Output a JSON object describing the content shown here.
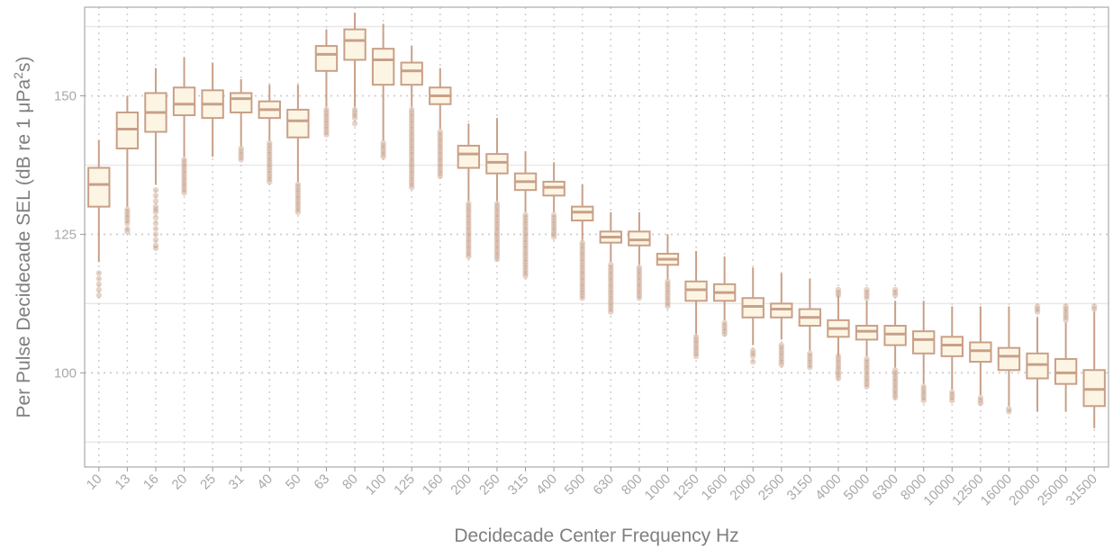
{
  "chart_data": {
    "type": "box",
    "xlabel": "Decidecade Center Frequency  Hz",
    "ylabel": {
      "text": "Per Pulse Decidecade SEL (dB re 1 μPa",
      "sup": "2",
      "suffix": "s)"
    },
    "ylim": [
      83,
      166
    ],
    "yticks": [
      100,
      125,
      150
    ],
    "grid": true,
    "colors": {
      "box_fill": "#fdf5e4",
      "box_stroke": "#c8a088",
      "outlier": "#c8a088",
      "tick_text": "#a8a8a8",
      "title_text": "#7f7f7f",
      "grid_major": "#e8e8e8",
      "grid_dotted": "#cfcfcf",
      "frame": "#9a9a9a"
    },
    "categories": [
      "10",
      "13",
      "16",
      "20",
      "25",
      "31",
      "40",
      "50",
      "63",
      "80",
      "100",
      "125",
      "160",
      "200",
      "250",
      "315",
      "400",
      "500",
      "630",
      "800",
      "1000",
      "1250",
      "1600",
      "2000",
      "2500",
      "3150",
      "4000",
      "5000",
      "6300",
      "8000",
      "10000",
      "12500",
      "16000",
      "20000",
      "25000",
      "31500"
    ],
    "boxes": [
      {
        "whisker_low": 120,
        "q1": 130,
        "median": 134,
        "q3": 137,
        "whisker_high": 142,
        "outliers": [
          118,
          117,
          116,
          115,
          114
        ]
      },
      {
        "whisker_low": 130,
        "q1": 140.5,
        "median": 144,
        "q3": 147,
        "whisker_high": 150,
        "outliers": [
          129.5,
          129,
          128.5,
          128,
          127.5,
          127,
          126,
          125.5
        ]
      },
      {
        "whisker_low": 134,
        "q1": 143.5,
        "median": 147,
        "q3": 150.5,
        "whisker_high": 155,
        "outliers": [
          133,
          132,
          131,
          130,
          129.5,
          129,
          128,
          127,
          126,
          125,
          124,
          123,
          122.5
        ]
      },
      {
        "whisker_low": 139,
        "q1": 146.5,
        "median": 148.5,
        "q3": 151.5,
        "whisker_high": 157,
        "outliers": [
          138.5,
          138,
          137.5,
          137,
          136.5,
          136,
          135.5,
          135,
          134.5,
          134,
          133.5,
          133,
          132.5
        ]
      },
      {
        "whisker_low": 139,
        "q1": 146,
        "median": 148.5,
        "q3": 151,
        "whisker_high": 156,
        "outliers": []
      },
      {
        "whisker_low": 141,
        "q1": 147,
        "median": 149.5,
        "q3": 150.5,
        "whisker_high": 153,
        "outliers": [
          140.5,
          140,
          139.5,
          139,
          138.5
        ]
      },
      {
        "whisker_low": 142,
        "q1": 146,
        "median": 147.5,
        "q3": 149,
        "whisker_high": 152,
        "outliers": [
          141.5,
          141,
          140.5,
          140,
          139.5,
          139,
          138.5,
          138,
          137.5,
          137,
          136.5,
          136,
          135.5,
          135,
          134.5
        ]
      },
      {
        "whisker_low": 134.5,
        "q1": 142.5,
        "median": 145.5,
        "q3": 147.5,
        "whisker_high": 152,
        "outliers": [
          134,
          133.5,
          133,
          132.5,
          132,
          131.5,
          131,
          130.5,
          130,
          129.5,
          129
        ]
      },
      {
        "whisker_low": 148,
        "q1": 154.5,
        "median": 157.5,
        "q3": 159,
        "whisker_high": 162,
        "outliers": [
          147.5,
          147,
          146.5,
          146,
          145.5,
          145,
          144.5,
          144,
          143.5,
          143
        ]
      },
      {
        "whisker_low": 148,
        "q1": 156.5,
        "median": 160,
        "q3": 162,
        "whisker_high": 165,
        "outliers": [
          147.5,
          147,
          146.5,
          146,
          145
        ]
      },
      {
        "whisker_low": 142,
        "q1": 152,
        "median": 156.5,
        "q3": 158.5,
        "whisker_high": 163,
        "outliers": [
          141.5,
          141,
          140.5,
          140,
          139.5,
          139
        ]
      },
      {
        "whisker_low": 148,
        "q1": 152,
        "median": 154.5,
        "q3": 156,
        "whisker_high": 159,
        "outliers": [
          147.5,
          147,
          146.5,
          146,
          145.5,
          145,
          144.5,
          144,
          143.5,
          143,
          142.5,
          142,
          141.5,
          141,
          140.5,
          140,
          139.5,
          139,
          138.5,
          138,
          137.5,
          137,
          136.5,
          136,
          135.5,
          135,
          134.5,
          134,
          133.5
        ]
      },
      {
        "whisker_low": 144,
        "q1": 148.5,
        "median": 150,
        "q3": 151.5,
        "whisker_high": 155,
        "outliers": [
          143.5,
          143,
          142.5,
          142,
          141.5,
          141,
          140.5,
          140,
          139.5,
          139,
          138.5,
          138,
          137.5,
          137,
          136.5,
          136,
          135.5
        ]
      },
      {
        "whisker_low": 131,
        "q1": 137,
        "median": 139.5,
        "q3": 141,
        "whisker_high": 145,
        "outliers": [
          130.5,
          130,
          129.5,
          129,
          128.5,
          128,
          127.5,
          127,
          126.5,
          126,
          125.5,
          125,
          124.5,
          124,
          123.5,
          123,
          122.5,
          122,
          121.5,
          121
        ]
      },
      {
        "whisker_low": 131,
        "q1": 136,
        "median": 138,
        "q3": 139.5,
        "whisker_high": 146,
        "outliers": [
          130.5,
          130,
          129.5,
          129,
          128.5,
          128,
          127.5,
          127,
          126.5,
          126,
          125.5,
          125,
          124.5,
          124,
          123.5,
          123,
          122.5,
          122,
          121.5,
          121,
          120.5
        ]
      },
      {
        "whisker_low": 129,
        "q1": 133,
        "median": 134.5,
        "q3": 136,
        "whisker_high": 140,
        "outliers": [
          128.5,
          128,
          127.5,
          127,
          126.5,
          126,
          125.5,
          125,
          124.5,
          124,
          123.5,
          123,
          122.5,
          122,
          121.5,
          121,
          120.5,
          120,
          119.5,
          119,
          118.5,
          118,
          117.5
        ]
      },
      {
        "whisker_low": 129,
        "q1": 132,
        "median": 133.5,
        "q3": 134.5,
        "whisker_high": 138,
        "outliers": [
          128.5,
          128,
          127.5,
          127,
          126.5,
          126,
          125.5,
          125,
          124.5
        ]
      },
      {
        "whisker_low": 124,
        "q1": 127.5,
        "median": 129,
        "q3": 130,
        "whisker_high": 134,
        "outliers": [
          123.5,
          123,
          122.5,
          122,
          121.5,
          121,
          120.5,
          120,
          119.5,
          119,
          118.5,
          118,
          117.5,
          117,
          116.5,
          116,
          115.5,
          115,
          114.5,
          114,
          113.5
        ]
      },
      {
        "whisker_low": 120,
        "q1": 123.5,
        "median": 124.5,
        "q3": 125.5,
        "whisker_high": 129,
        "outliers": [
          119.5,
          119,
          118.5,
          118,
          117.5,
          117,
          116.5,
          116,
          115.5,
          115,
          114.5,
          114,
          113.5,
          113,
          112.5,
          112,
          111.5,
          111
        ]
      },
      {
        "whisker_low": 119.5,
        "q1": 123,
        "median": 124,
        "q3": 125.5,
        "whisker_high": 129,
        "outliers": [
          119,
          118.5,
          118,
          117.5,
          117,
          116.5,
          116,
          115.5,
          115,
          114.5,
          114,
          113.5
        ]
      },
      {
        "whisker_low": 117,
        "q1": 119.5,
        "median": 120.5,
        "q3": 121.5,
        "whisker_high": 125,
        "outliers": [
          116.5,
          116,
          115.5,
          115,
          114.5,
          114,
          113.5,
          113,
          112.5,
          112
        ]
      },
      {
        "whisker_low": 107,
        "q1": 113,
        "median": 115,
        "q3": 116.5,
        "whisker_high": 122,
        "outliers": [
          106.5,
          106,
          105.5,
          105,
          104.5,
          104,
          103.5,
          103
        ]
      },
      {
        "whisker_low": 109.5,
        "q1": 113,
        "median": 114.5,
        "q3": 116,
        "whisker_high": 121,
        "outliers": [
          109,
          108.5,
          108,
          107.5,
          107
        ]
      },
      {
        "whisker_low": 105,
        "q1": 110,
        "median": 112,
        "q3": 113.5,
        "whisker_high": 119,
        "outliers": [
          104,
          103.5,
          103,
          102
        ]
      },
      {
        "whisker_low": 106,
        "q1": 110,
        "median": 111.5,
        "q3": 112.5,
        "whisker_high": 118,
        "outliers": [
          105,
          104.5,
          104,
          103.5,
          103,
          102.5,
          102,
          101.5
        ]
      },
      {
        "whisker_low": 104,
        "q1": 108.5,
        "median": 110,
        "q3": 111.5,
        "whisker_high": 117,
        "outliers": [
          103.5,
          103,
          102.5,
          102,
          101.5,
          101
        ]
      },
      {
        "whisker_low": 103,
        "q1": 106.5,
        "median": 108,
        "q3": 109.5,
        "whisker_high": 114,
        "outliers": [
          115,
          114.5,
          114,
          103,
          102.5,
          102,
          101.5,
          101,
          100.5,
          100,
          99.5,
          99
        ]
      },
      {
        "whisker_low": 103,
        "q1": 106,
        "median": 107.5,
        "q3": 108.5,
        "whisker_high": 113,
        "outliers": [
          115,
          114.5,
          114,
          113.5,
          102.5,
          102,
          101.5,
          101,
          100.5,
          100,
          99.5,
          99,
          98.5,
          98,
          97.5
        ]
      },
      {
        "whisker_low": 101,
        "q1": 105,
        "median": 107,
        "q3": 108.5,
        "whisker_high": 113,
        "outliers": [
          115,
          114.5,
          114,
          100.5,
          100,
          99.5,
          99,
          98.5,
          98,
          97.5,
          97,
          96.5,
          96,
          95.5
        ]
      },
      {
        "whisker_low": 98,
        "q1": 103.5,
        "median": 106,
        "q3": 107.5,
        "whisker_high": 113,
        "outliers": [
          97.5,
          97,
          96.5,
          96,
          95.5,
          95
        ]
      },
      {
        "whisker_low": 97,
        "q1": 103,
        "median": 105,
        "q3": 106.5,
        "whisker_high": 112,
        "outliers": [
          96.5,
          96,
          95.5,
          95
        ]
      },
      {
        "whisker_low": 96,
        "q1": 102,
        "median": 104,
        "q3": 105.5,
        "whisker_high": 112,
        "outliers": [
          95.5,
          95,
          94.5
        ]
      },
      {
        "whisker_low": 94,
        "q1": 100.5,
        "median": 103,
        "q3": 104.5,
        "whisker_high": 112,
        "outliers": [
          93.5,
          93
        ]
      },
      {
        "whisker_low": 93,
        "q1": 99,
        "median": 101.5,
        "q3": 103.5,
        "whisker_high": 110,
        "outliers": [
          112,
          111.5,
          111
        ]
      },
      {
        "whisker_low": 93,
        "q1": 98,
        "median": 100,
        "q3": 102.5,
        "whisker_high": 109,
        "outliers": [
          112,
          111.5,
          111,
          110.5,
          110,
          109.5
        ]
      },
      {
        "whisker_low": 90,
        "q1": 94,
        "median": 97,
        "q3": 100.5,
        "whisker_high": 111,
        "outliers": [
          112,
          111.5
        ]
      }
    ]
  }
}
